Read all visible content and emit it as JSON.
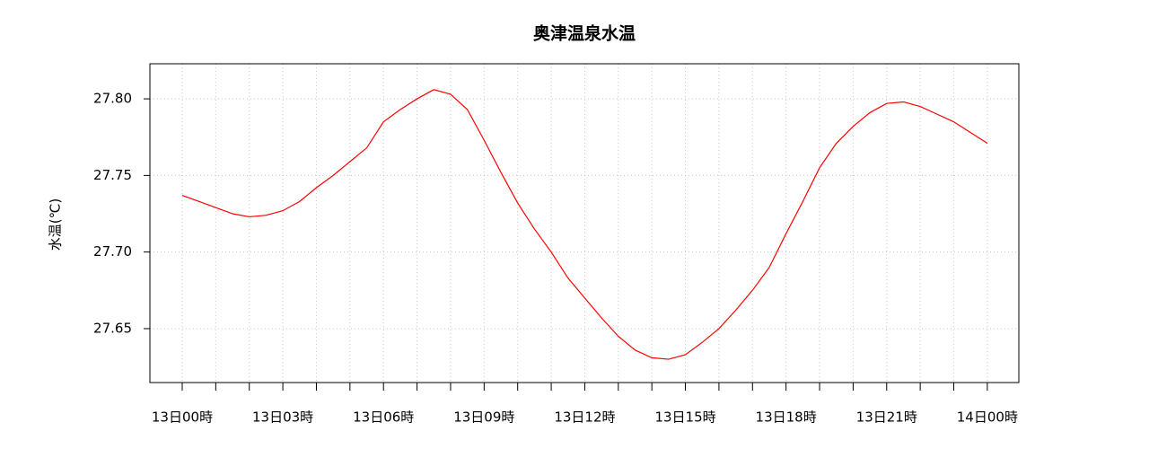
{
  "chart_data": {
    "type": "line",
    "title": "奥津温泉水温",
    "y_label": "水温(℃)",
    "x": [
      0,
      0.5,
      1,
      1.5,
      2,
      2.5,
      3,
      3.5,
      4,
      4.5,
      5,
      5.5,
      6,
      6.5,
      7,
      7.5,
      8,
      8.5,
      9,
      9.5,
      10,
      10.5,
      11,
      11.5,
      12,
      12.5,
      13,
      13.5,
      14,
      14.5,
      15,
      15.5,
      16,
      16.5,
      17,
      17.5,
      18,
      18.5,
      19,
      19.5,
      20,
      20.5,
      21,
      21.5,
      22,
      22.5,
      23,
      23.5,
      24
    ],
    "series": [
      {
        "name": "水温",
        "color": "#ff0000",
        "values": [
          27.737,
          27.733,
          27.729,
          27.725,
          27.723,
          27.724,
          27.727,
          27.733,
          27.742,
          27.75,
          27.759,
          27.768,
          27.785,
          27.793,
          27.8,
          27.806,
          27.803,
          27.793,
          27.773,
          27.752,
          27.732,
          27.715,
          27.7,
          27.683,
          27.67,
          27.657,
          27.645,
          27.636,
          27.631,
          27.63,
          27.633,
          27.641,
          27.65,
          27.662,
          27.675,
          27.69,
          27.712,
          27.733,
          27.755,
          27.771,
          27.782,
          27.791,
          27.797,
          27.798,
          27.795,
          27.79,
          27.785,
          27.778,
          27.771
        ]
      }
    ],
    "xlim": [
      -0.963,
      24.94
    ],
    "ylim": [
      27.6148,
      27.8229
    ],
    "xticks": [
      {
        "value": 0,
        "label": "13日00時"
      },
      {
        "value": 3,
        "label": "13日03時"
      },
      {
        "value": 6,
        "label": "13日06時"
      },
      {
        "value": 9,
        "label": "13日09時"
      },
      {
        "value": 12,
        "label": "13日12時"
      },
      {
        "value": 15,
        "label": "13日15時"
      },
      {
        "value": 18,
        "label": "13日18時"
      },
      {
        "value": 21,
        "label": "13日21時"
      },
      {
        "value": 24,
        "label": "14日00時"
      }
    ],
    "xminor_ticks": [
      1,
      2,
      4,
      5,
      7,
      8,
      10,
      11,
      13,
      14,
      16,
      17,
      19,
      20,
      22,
      23
    ],
    "yticks": [
      {
        "value": 27.65,
        "label": "27.65"
      },
      {
        "value": 27.7,
        "label": "27.70"
      },
      {
        "value": 27.75,
        "label": "27.75"
      },
      {
        "value": 27.8,
        "label": "27.80"
      }
    ],
    "grid": true
  }
}
